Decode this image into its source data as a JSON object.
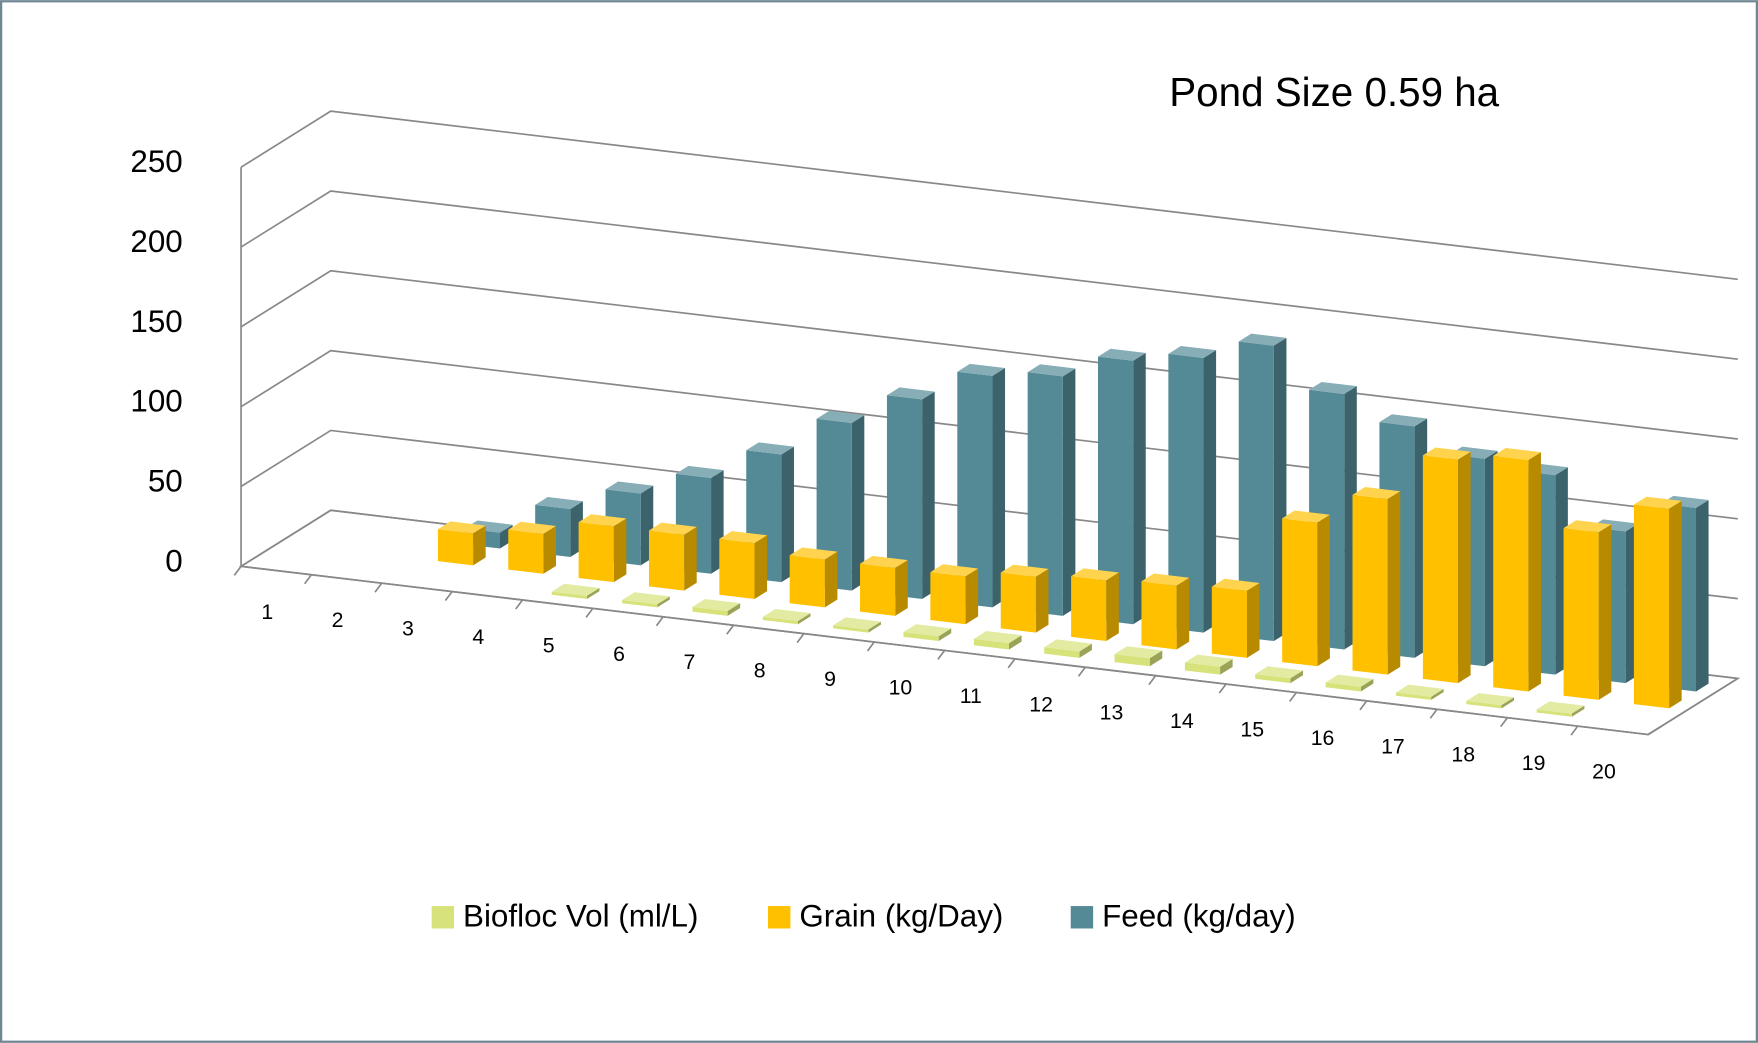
{
  "chart_data": {
    "type": "bar3d",
    "title": "Pond Size 0.59 ha",
    "categories": [
      "1",
      "2",
      "3",
      "4",
      "5",
      "6",
      "7",
      "8",
      "9",
      "10",
      "11",
      "12",
      "13",
      "14",
      "15",
      "16",
      "17",
      "18",
      "19",
      "20"
    ],
    "series": [
      {
        "name": "Biofloc Vol (ml/L)",
        "color": "#d7e27a",
        "values": [
          null,
          null,
          null,
          null,
          2,
          2,
          3,
          2,
          2,
          3,
          4,
          4,
          5,
          5,
          3,
          3,
          2,
          2,
          2,
          null
        ]
      },
      {
        "name": "Grain (kg/Day)",
        "color": "#ffc000",
        "values": [
          null,
          null,
          20,
          25,
          35,
          35,
          35,
          30,
          30,
          30,
          35,
          38,
          40,
          42,
          90,
          110,
          140,
          145,
          105,
          125
        ]
      },
      {
        "name": "Feed (kg/day)",
        "color": "#548a96",
        "values": [
          null,
          null,
          10,
          30,
          45,
          60,
          80,
          105,
          125,
          145,
          150,
          165,
          172,
          185,
          160,
          145,
          130,
          125,
          95,
          115
        ]
      }
    ],
    "ylim": [
      0,
      250
    ],
    "yticks": [
      0,
      50,
      100,
      150,
      200,
      250
    ],
    "grid": true,
    "legend": "bottom"
  }
}
